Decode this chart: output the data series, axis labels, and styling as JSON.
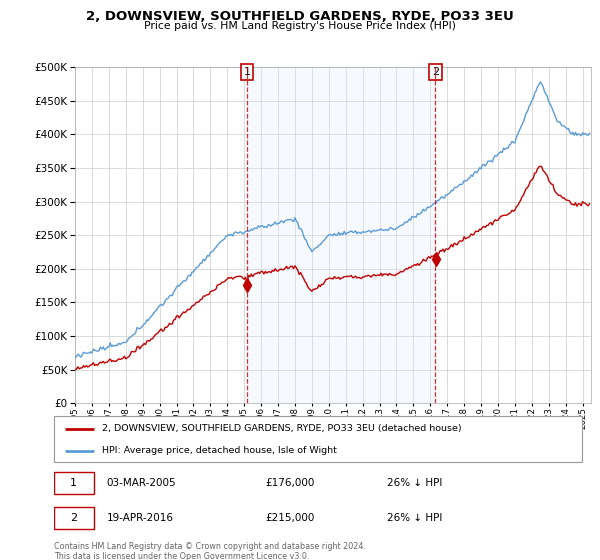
{
  "title": "2, DOWNSVIEW, SOUTHFIELD GARDENS, RYDE, PO33 3EU",
  "subtitle": "Price paid vs. HM Land Registry's House Price Index (HPI)",
  "legend_line1": "2, DOWNSVIEW, SOUTHFIELD GARDENS, RYDE, PO33 3EU (detached house)",
  "legend_line2": "HPI: Average price, detached house, Isle of Wight",
  "annotation1_date": "03-MAR-2005",
  "annotation1_price": "£176,000",
  "annotation1_hpi": "26% ↓ HPI",
  "annotation2_date": "19-APR-2016",
  "annotation2_price": "£215,000",
  "annotation2_hpi": "26% ↓ HPI",
  "footer": "Contains HM Land Registry data © Crown copyright and database right 2024.\nThis data is licensed under the Open Government Licence v3.0.",
  "sale1_year": 2005.17,
  "sale1_price": 176000,
  "sale2_year": 2016.3,
  "sale2_price": 215000,
  "hpi_color": "#5b9bd5",
  "price_color": "#c00000",
  "shade_color": "#ddeeff",
  "ylim_min": 0,
  "ylim_max": 500000,
  "xlim_min": 1995,
  "xlim_max": 2025.5
}
